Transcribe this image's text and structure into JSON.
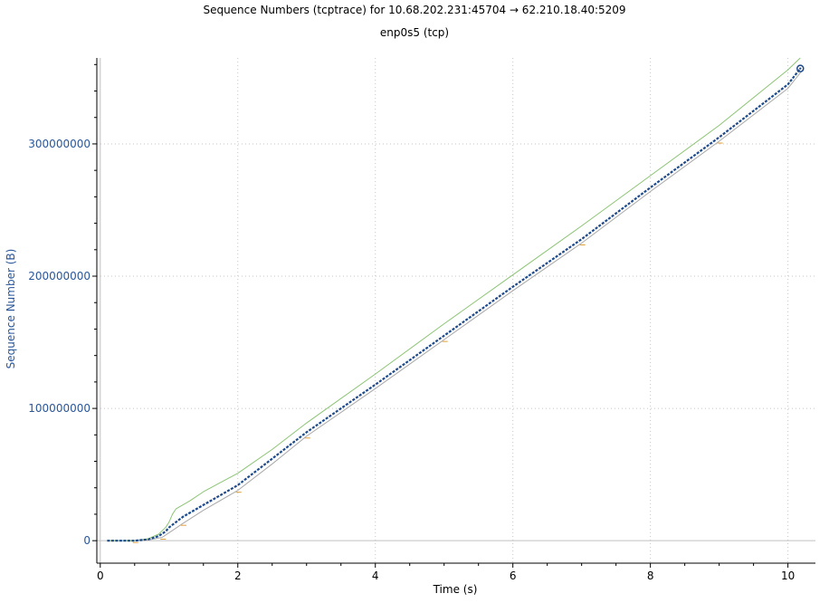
{
  "title": "Sequence Numbers (tcptrace) for 10.68.202.231:45704 → 62.210.18.40:5209",
  "subtitle": "enp0s5 (tcp)",
  "colors": {
    "sequence": "#1f4a8a",
    "window": "#8cc474",
    "ack": "#a8a8a8",
    "sack": "#e2a03a",
    "axis_label": "#2a5699",
    "grid": "#c8c8c8"
  },
  "chart_data": {
    "type": "line",
    "title": "Sequence Numbers (tcptrace) for 10.68.202.231:45704 → 62.210.18.40:5209",
    "subtitle": "enp0s5 (tcp)",
    "xlabel": "Time (s)",
    "ylabel": "Sequence Number (B)",
    "xlim": [
      -0.05,
      10.4
    ],
    "ylim": [
      -17000000,
      365000000
    ],
    "xticks": [
      0,
      2,
      4,
      6,
      8,
      10
    ],
    "yticks": [
      0,
      100000000,
      200000000,
      300000000
    ],
    "xtick_labels": [
      "0",
      "2",
      "4",
      "6",
      "8",
      "10"
    ],
    "ytick_labels": [
      "0",
      "100000000",
      "200000000",
      "300000000"
    ],
    "grid": true,
    "series": [
      {
        "key": "sequence",
        "x": [
          0.1,
          0.5,
          0.7,
          0.85,
          0.95,
          1.0,
          1.1,
          1.2,
          1.5,
          2.0,
          2.5,
          3.0,
          4.0,
          5.0,
          6.0,
          7.0,
          8.0,
          9.0,
          10.0,
          10.18
        ],
        "y": [
          0,
          0,
          1000000,
          3500000,
          7000000,
          10000000,
          14000000,
          18000000,
          27000000,
          42000000,
          62000000,
          82000000,
          118000000,
          155000000,
          192000000,
          228000000,
          267000000,
          305000000,
          345000000,
          357000000
        ]
      },
      {
        "key": "window",
        "x": [
          0.1,
          0.5,
          0.7,
          0.85,
          0.95,
          1.0,
          1.05,
          1.1,
          1.3,
          1.5,
          2.0,
          2.5,
          3.0,
          4.0,
          5.0,
          6.0,
          7.0,
          8.0,
          9.0,
          10.0,
          10.18
        ],
        "y": [
          0,
          0,
          1500000,
          5000000,
          10000000,
          14000000,
          20000000,
          24000000,
          30000000,
          37000000,
          51000000,
          69000000,
          89000000,
          126000000,
          164000000,
          201000000,
          238000000,
          276000000,
          314000000,
          356000000,
          365000000
        ]
      },
      {
        "key": "ack",
        "x": [
          0.1,
          0.5,
          0.7,
          0.9,
          1.0,
          1.2,
          1.5,
          2.0,
          2.5,
          3.0,
          4.0,
          5.0,
          6.0,
          7.0,
          8.0,
          9.0,
          10.0,
          10.2
        ],
        "y": [
          0,
          0,
          500000,
          2500000,
          6000000,
          13000000,
          23000000,
          38000000,
          58000000,
          79000000,
          115000000,
          152000000,
          189000000,
          225000000,
          264000000,
          302000000,
          342000000,
          355000000
        ]
      }
    ]
  }
}
